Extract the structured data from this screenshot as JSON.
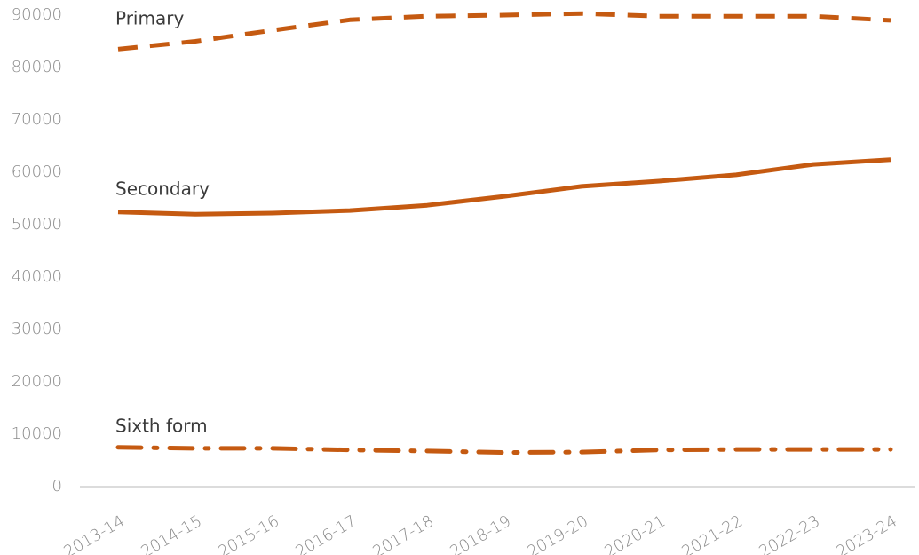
{
  "chart_data": {
    "type": "line",
    "categories": [
      "2013-14",
      "2014-15",
      "2015-16",
      "2016-17",
      "2017-18",
      "2018-19",
      "2019-20",
      "2020-21",
      "2021-22",
      "2022-23",
      "2023-24"
    ],
    "series": [
      {
        "name": "Primary",
        "color": "#c55a11",
        "style": "dashed",
        "values": [
          83500,
          85000,
          87100,
          89100,
          89800,
          90000,
          90300,
          89800,
          89800,
          89800,
          89000
        ]
      },
      {
        "name": "Secondary",
        "color": "#c55a11",
        "style": "solid",
        "values": [
          52400,
          52000,
          52200,
          52700,
          53700,
          55400,
          57300,
          58300,
          59500,
          61500,
          62400
        ]
      },
      {
        "name": "Sixth form",
        "color": "#c55a11",
        "style": "dash-dot",
        "values": [
          7500,
          7300,
          7300,
          7000,
          6800,
          6500,
          6600,
          7000,
          7100,
          7100,
          7100
        ]
      }
    ],
    "ylim": [
      0,
      90000
    ],
    "yticks": [
      0,
      10000,
      20000,
      30000,
      40000,
      50000,
      60000,
      70000,
      80000,
      90000
    ],
    "grid": false
  }
}
